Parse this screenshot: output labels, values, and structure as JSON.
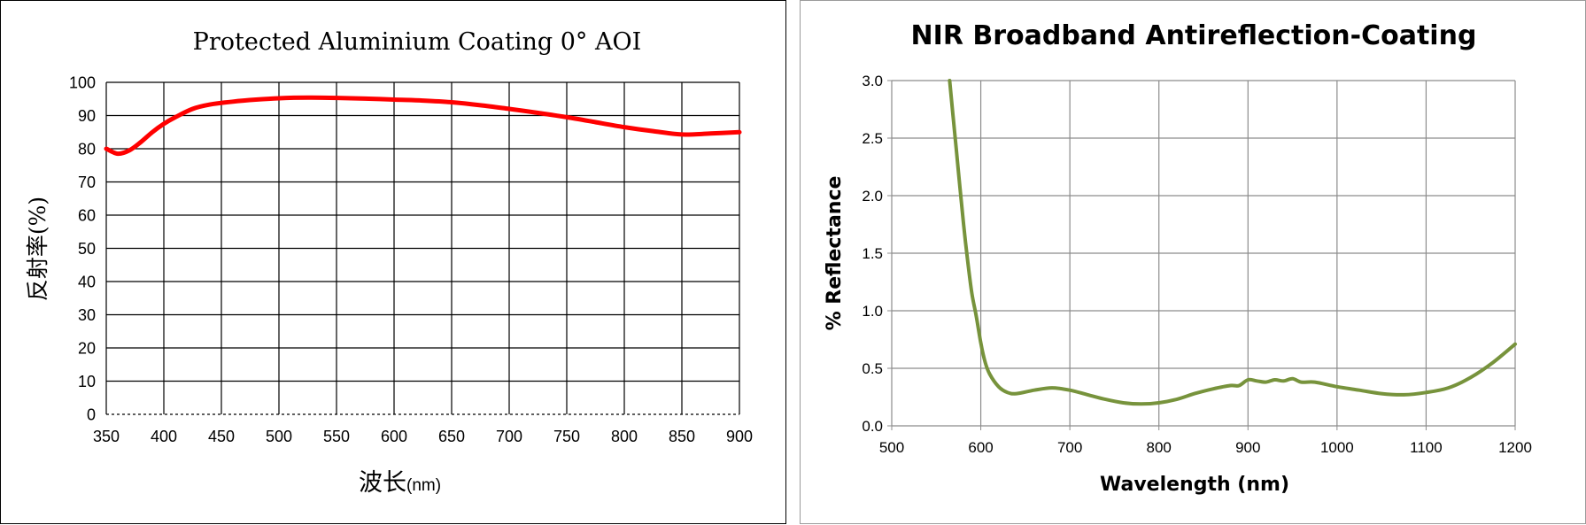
{
  "chart_data": [
    {
      "type": "line",
      "title": "Protected Aluminium Coating 0°  AOI",
      "xlabel_main": "波长",
      "xlabel_unit": "(nm)",
      "ylabel": "反射率(%)",
      "xlim": [
        350,
        900
      ],
      "ylim": [
        0,
        100
      ],
      "xticks": [
        350,
        400,
        450,
        500,
        550,
        600,
        650,
        700,
        750,
        800,
        850,
        900
      ],
      "yticks": [
        0,
        10,
        20,
        30,
        40,
        50,
        60,
        70,
        80,
        90,
        100
      ],
      "grid": true,
      "series": [
        {
          "color": "#ff0000",
          "x": [
            350,
            360,
            370,
            380,
            390,
            400,
            410,
            425,
            440,
            460,
            480,
            500,
            525,
            550,
            575,
            600,
            625,
            650,
            675,
            700,
            725,
            750,
            775,
            800,
            825,
            850,
            875,
            900
          ],
          "y": [
            80,
            78.5,
            79.5,
            82,
            85,
            87.5,
            89.5,
            92,
            93.3,
            94.2,
            94.8,
            95.2,
            95.4,
            95.3,
            95.1,
            94.8,
            94.5,
            94,
            93.1,
            92,
            90.8,
            89.5,
            88,
            86.5,
            85.3,
            84.3,
            84.6,
            85
          ]
        }
      ]
    },
    {
      "type": "line",
      "title": "NIR Broadband Antireflection-Coating",
      "xlabel": "Wavelength (nm)",
      "ylabel": "% Reflectance",
      "xlim": [
        500,
        1200
      ],
      "ylim": [
        0,
        3.0
      ],
      "xticks": [
        "500",
        "600",
        "700",
        "800",
        "900",
        "1000",
        "1100",
        "1200"
      ],
      "yticks": [
        "0.0",
        "0.5",
        "1.0",
        "1.5",
        "2.0",
        "2.5",
        "3.0"
      ],
      "grid": true,
      "series": [
        {
          "color": "#77933c",
          "x": [
            565,
            570,
            575,
            580,
            585,
            590,
            595,
            600,
            605,
            610,
            620,
            630,
            640,
            660,
            680,
            700,
            720,
            740,
            760,
            780,
            800,
            820,
            840,
            860,
            880,
            890,
            900,
            910,
            920,
            930,
            940,
            950,
            960,
            975,
            1000,
            1025,
            1050,
            1075,
            1100,
            1125,
            1150,
            1175,
            1200
          ],
          "y": [
            3.0,
            2.6,
            2.2,
            1.8,
            1.45,
            1.15,
            0.95,
            0.72,
            0.55,
            0.45,
            0.34,
            0.29,
            0.28,
            0.31,
            0.33,
            0.31,
            0.27,
            0.23,
            0.2,
            0.19,
            0.2,
            0.23,
            0.28,
            0.32,
            0.35,
            0.35,
            0.4,
            0.39,
            0.38,
            0.4,
            0.39,
            0.41,
            0.38,
            0.38,
            0.34,
            0.31,
            0.28,
            0.27,
            0.29,
            0.33,
            0.42,
            0.55,
            0.71
          ]
        }
      ]
    }
  ]
}
